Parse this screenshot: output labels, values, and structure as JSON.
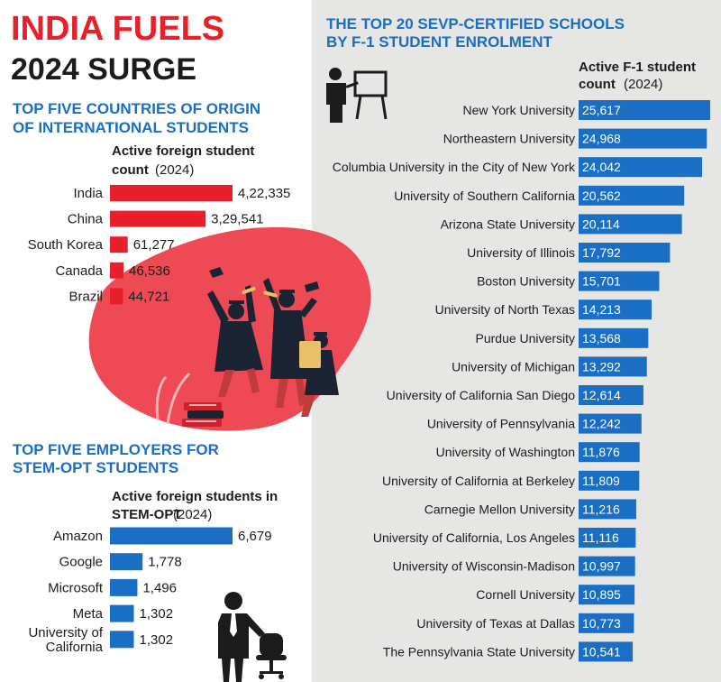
{
  "header": {
    "title_line1": "INDIA FUELS",
    "title_line2": "2024 SURGE"
  },
  "colors": {
    "red": "#e8202b",
    "blue": "#1a6fc4",
    "heading_blue": "#1a6fc4",
    "panel_gray": "#e6e6e4",
    "blob": "#ee4a55"
  },
  "icons": [
    "presenter-icon",
    "graduates-illustration",
    "books-icon",
    "manager-icon",
    "office-chair-icon"
  ],
  "chart_data": [
    {
      "id": "countries",
      "type": "bar",
      "orientation": "horizontal",
      "title": "TOP FIVE COUNTRIES OF ORIGIN OF INTERNATIONAL STUDENTS",
      "title_lines": [
        "TOP FIVE COUNTRIES OF ORIGIN",
        "OF INTERNATIONAL STUDENTS"
      ],
      "value_label_lines": [
        "Active foreign student",
        "count"
      ],
      "value_label_year": "(2024)",
      "categories": [
        "India",
        "China",
        "South Korea",
        "Canada",
        "Brazil"
      ],
      "category_label_lines": [
        [
          "India"
        ],
        [
          "China"
        ],
        [
          "South Korea"
        ],
        [
          "Canada"
        ],
        [
          "Brazil"
        ]
      ],
      "values": [
        422335,
        329541,
        61277,
        46536,
        44721
      ],
      "value_labels": [
        "4,22,335",
        "3,29,541",
        "61,277",
        "46,536",
        "44,721"
      ],
      "color": "#e8202b"
    },
    {
      "id": "employers",
      "type": "bar",
      "orientation": "horizontal",
      "title": "TOP FIVE EMPLOYERS FOR STEM-OPT STUDENTS",
      "title_lines": [
        "TOP FIVE EMPLOYERS FOR",
        "STEM-OPT STUDENTS"
      ],
      "value_label_lines": [
        "Active foreign students in",
        "STEM-OPT"
      ],
      "value_label_year": "(2024)",
      "categories": [
        "Amazon",
        "Google",
        "Microsoft",
        "Meta",
        "University of California"
      ],
      "category_label_lines": [
        [
          "Amazon"
        ],
        [
          "Google"
        ],
        [
          "Microsoft"
        ],
        [
          "Meta"
        ],
        [
          "University of",
          "California"
        ]
      ],
      "values": [
        6679,
        1778,
        1496,
        1302,
        1302
      ],
      "value_labels": [
        "6,679",
        "1,778",
        "1,496",
        "1,302",
        "1,302"
      ],
      "color": "#1a6fc4"
    },
    {
      "id": "schools",
      "type": "bar",
      "orientation": "horizontal",
      "title": "THE TOP 20 SEVP-CERTIFIED SCHOOLS BY F-1 STUDENT ENROLMENT",
      "title_lines": [
        "THE TOP 20 SEVP-CERTIFIED SCHOOLS",
        "BY F-1 STUDENT ENROLMENT"
      ],
      "value_label_lines": [
        "Active F-1 student",
        "count"
      ],
      "value_label_year": "(2024)",
      "categories": [
        "New York University",
        "Northeastern University",
        "Columbia University in the City of New York",
        "University of Southern California",
        "Arizona State University",
        "University of Illinois",
        "Boston University",
        "University of North Texas",
        "Purdue University",
        "University of Michigan",
        "University of California San Diego",
        "University of Pennsylvania",
        "University of Washington",
        "University of California at Berkeley",
        "Carnegie Mellon University",
        "University of California, Los Angeles",
        "University of Wisconsin-Madison",
        "Cornell University",
        "University of Texas at Dallas",
        "The Pennsylvania State University"
      ],
      "values": [
        25617,
        24968,
        24042,
        20562,
        20114,
        17792,
        15701,
        14213,
        13568,
        13292,
        12614,
        12242,
        11876,
        11809,
        11216,
        11116,
        10997,
        10895,
        10773,
        10541
      ],
      "value_labels": [
        "25,617",
        "24,968",
        "24,042",
        "20,562",
        "20,114",
        "17,792",
        "15,701",
        "14,213",
        "13,568",
        "13,292",
        "12,614",
        "12,242",
        "11,876",
        "11,809",
        "11,216",
        "11,116",
        "10,997",
        "10,895",
        "10,773",
        "10,541"
      ],
      "color": "#1a6fc4"
    }
  ]
}
